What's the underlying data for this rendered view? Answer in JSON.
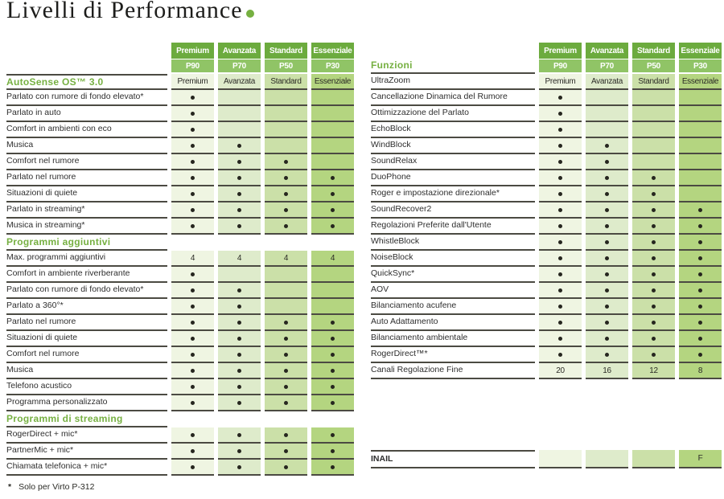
{
  "title": "Livelli di Performance",
  "footnote": {
    "marker": "*",
    "text": "Solo per Virto P-312"
  },
  "colors": {
    "accent_green": "#76b041",
    "header_top": "#6cab3e",
    "header_bottom": "#90c466",
    "line": "#4b4a42",
    "dot": "#26261f",
    "column_tints": [
      "#eff5e2",
      "#deebcb",
      "#cbe0a8",
      "#b4d580"
    ]
  },
  "tiers": [
    {
      "name": "Premium",
      "code": "P90"
    },
    {
      "name": "Avanzata",
      "code": "P70"
    },
    {
      "name": "Standard",
      "code": "P50"
    },
    {
      "name": "Essenziale",
      "code": "P30"
    }
  ],
  "left_table": {
    "sections": [
      {
        "title": "AutoSense OS™ 3.0",
        "topline": true,
        "values": [
          "Premium",
          "Avanzata",
          "Standard",
          "Essenziale"
        ],
        "rows": [
          {
            "label": "Parlato con rumore di fondo elevato*",
            "values": [
              "dot",
              "",
              "",
              ""
            ]
          },
          {
            "label": "Parlato in auto",
            "values": [
              "dot",
              "",
              "",
              ""
            ]
          },
          {
            "label": "Comfort in ambienti con eco",
            "values": [
              "dot",
              "",
              "",
              ""
            ]
          },
          {
            "label": "Musica",
            "values": [
              "dot",
              "dot",
              "",
              ""
            ]
          },
          {
            "label": "Comfort nel rumore",
            "values": [
              "dot",
              "dot",
              "dot",
              ""
            ]
          },
          {
            "label": "Parlato nel rumore",
            "values": [
              "dot",
              "dot",
              "dot",
              "dot"
            ]
          },
          {
            "label": "Situazioni di quiete",
            "values": [
              "dot",
              "dot",
              "dot",
              "dot"
            ]
          },
          {
            "label": "Parlato in streaming*",
            "values": [
              "dot",
              "dot",
              "dot",
              "dot"
            ]
          },
          {
            "label": "Musica in streaming*",
            "values": [
              "dot",
              "dot",
              "dot",
              "dot"
            ]
          }
        ]
      },
      {
        "title": "Programmi aggiuntivi",
        "rows": [
          {
            "label": "Max. programmi aggiuntivi",
            "values": [
              "4",
              "4",
              "4",
              "4"
            ]
          },
          {
            "label": "Comfort in ambiente riverberante",
            "values": [
              "dot",
              "",
              "",
              ""
            ]
          },
          {
            "label": "Parlato con rumore di fondo elevato*",
            "values": [
              "dot",
              "dot",
              "",
              ""
            ]
          },
          {
            "label": "Parlato a 360°*",
            "values": [
              "dot",
              "dot",
              "",
              ""
            ]
          },
          {
            "label": "Parlato nel rumore",
            "values": [
              "dot",
              "dot",
              "dot",
              "dot"
            ]
          },
          {
            "label": "Situazioni di quiete",
            "values": [
              "dot",
              "dot",
              "dot",
              "dot"
            ]
          },
          {
            "label": "Comfort nel rumore",
            "values": [
              "dot",
              "dot",
              "dot",
              "dot"
            ]
          },
          {
            "label": "Musica",
            "values": [
              "dot",
              "dot",
              "dot",
              "dot"
            ]
          },
          {
            "label": "Telefono acustico",
            "values": [
              "dot",
              "dot",
              "dot",
              "dot"
            ]
          },
          {
            "label": "Programma personalizzato",
            "values": [
              "dot",
              "dot",
              "dot",
              "dot"
            ]
          }
        ]
      },
      {
        "title": "Programmi di streaming",
        "rows": [
          {
            "label": "RogerDirect + mic*",
            "values": [
              "dot",
              "dot",
              "dot",
              "dot"
            ]
          },
          {
            "label": "PartnerMic + mic*",
            "values": [
              "dot",
              "dot",
              "dot",
              "dot"
            ]
          },
          {
            "label": "Chiamata telefonica + mic*",
            "values": [
              "dot",
              "dot",
              "dot",
              "dot"
            ]
          }
        ]
      }
    ]
  },
  "right_table": {
    "title_in_header": "Funzioni",
    "sections": [
      {
        "rows": [
          {
            "label": "UltraZoom",
            "values": [
              "Premium",
              "Avanzata",
              "Standard",
              "Essenziale"
            ]
          },
          {
            "label": "Cancellazione Dinamica del Rumore",
            "values": [
              "dot",
              "",
              "",
              ""
            ]
          },
          {
            "label": "Ottimizzazione del Parlato",
            "values": [
              "dot",
              "",
              "",
              ""
            ]
          },
          {
            "label": "EchoBlock",
            "values": [
              "dot",
              "",
              "",
              ""
            ]
          },
          {
            "label": "WindBlock",
            "values": [
              "dot",
              "dot",
              "",
              ""
            ]
          },
          {
            "label": "SoundRelax",
            "values": [
              "dot",
              "dot",
              "",
              ""
            ]
          },
          {
            "label": "DuoPhone",
            "values": [
              "dot",
              "dot",
              "dot",
              ""
            ]
          },
          {
            "label": "Roger e impostazione direzionale*",
            "values": [
              "dot",
              "dot",
              "dot",
              ""
            ]
          },
          {
            "label": "SoundRecover2",
            "values": [
              "dot",
              "dot",
              "dot",
              "dot"
            ]
          },
          {
            "label": "Regolazioni Preferite dall'Utente",
            "values": [
              "dot",
              "dot",
              "dot",
              "dot"
            ]
          },
          {
            "label": "WhistleBlock",
            "values": [
              "dot",
              "dot",
              "dot",
              "dot"
            ]
          },
          {
            "label": "NoiseBlock",
            "values": [
              "dot",
              "dot",
              "dot",
              "dot"
            ]
          },
          {
            "label": "QuickSync*",
            "values": [
              "dot",
              "dot",
              "dot",
              "dot"
            ]
          },
          {
            "label": "AOV",
            "values": [
              "dot",
              "dot",
              "dot",
              "dot"
            ]
          },
          {
            "label": "Bilanciamento acufene",
            "values": [
              "dot",
              "dot",
              "dot",
              "dot"
            ]
          },
          {
            "label": "Auto Adattamento",
            "values": [
              "dot",
              "dot",
              "dot",
              "dot"
            ]
          },
          {
            "label": "Bilanciamento ambientale",
            "values": [
              "dot",
              "dot",
              "dot",
              "dot"
            ]
          },
          {
            "label": "RogerDirect™*",
            "values": [
              "dot",
              "dot",
              "dot",
              "dot"
            ]
          },
          {
            "label": "Canali Regolazione Fine",
            "values": [
              "20",
              "16",
              "12",
              "8"
            ]
          },
          {
            "spacer": 88
          },
          {
            "label": "INAIL",
            "bold": true,
            "topline": true,
            "tall": true,
            "values": [
              "",
              "",
              "",
              "F"
            ]
          }
        ]
      }
    ]
  }
}
